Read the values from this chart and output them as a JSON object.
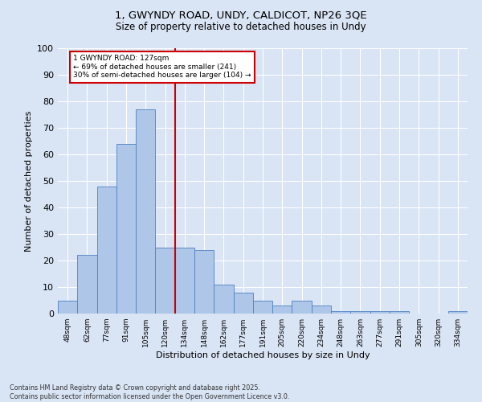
{
  "title_line1": "1, GWYNDY ROAD, UNDY, CALDICOT, NP26 3QE",
  "title_line2": "Size of property relative to detached houses in Undy",
  "xlabel": "Distribution of detached houses by size in Undy",
  "ylabel": "Number of detached properties",
  "bar_labels": [
    "48sqm",
    "62sqm",
    "77sqm",
    "91sqm",
    "105sqm",
    "120sqm",
    "134sqm",
    "148sqm",
    "162sqm",
    "177sqm",
    "191sqm",
    "205sqm",
    "220sqm",
    "234sqm",
    "248sqm",
    "263sqm",
    "277sqm",
    "291sqm",
    "305sqm",
    "320sqm",
    "334sqm"
  ],
  "bar_values": [
    5,
    22,
    48,
    64,
    77,
    25,
    25,
    24,
    11,
    8,
    5,
    3,
    5,
    3,
    1,
    1,
    1,
    1,
    0,
    0,
    1
  ],
  "bar_color": "#aec6e8",
  "bar_edge_color": "#4f81bd",
  "vline_x": 5.5,
  "vline_color": "#cc0000",
  "annotation_box_text": "1 GWYNDY ROAD: 127sqm\n← 69% of detached houses are smaller (241)\n30% of semi-detached houses are larger (104) →",
  "annotation_box_color": "#cc0000",
  "background_color": "#d9e4f5",
  "plot_bg_color": "#d9e4f5",
  "ylim": [
    0,
    100
  ],
  "yticks": [
    0,
    10,
    20,
    30,
    40,
    50,
    60,
    70,
    80,
    90,
    100
  ],
  "grid_color": "#ffffff",
  "footer_line1": "Contains HM Land Registry data © Crown copyright and database right 2025.",
  "footer_line2": "Contains public sector information licensed under the Open Government Licence v3.0.",
  "font_family": "DejaVu Sans"
}
